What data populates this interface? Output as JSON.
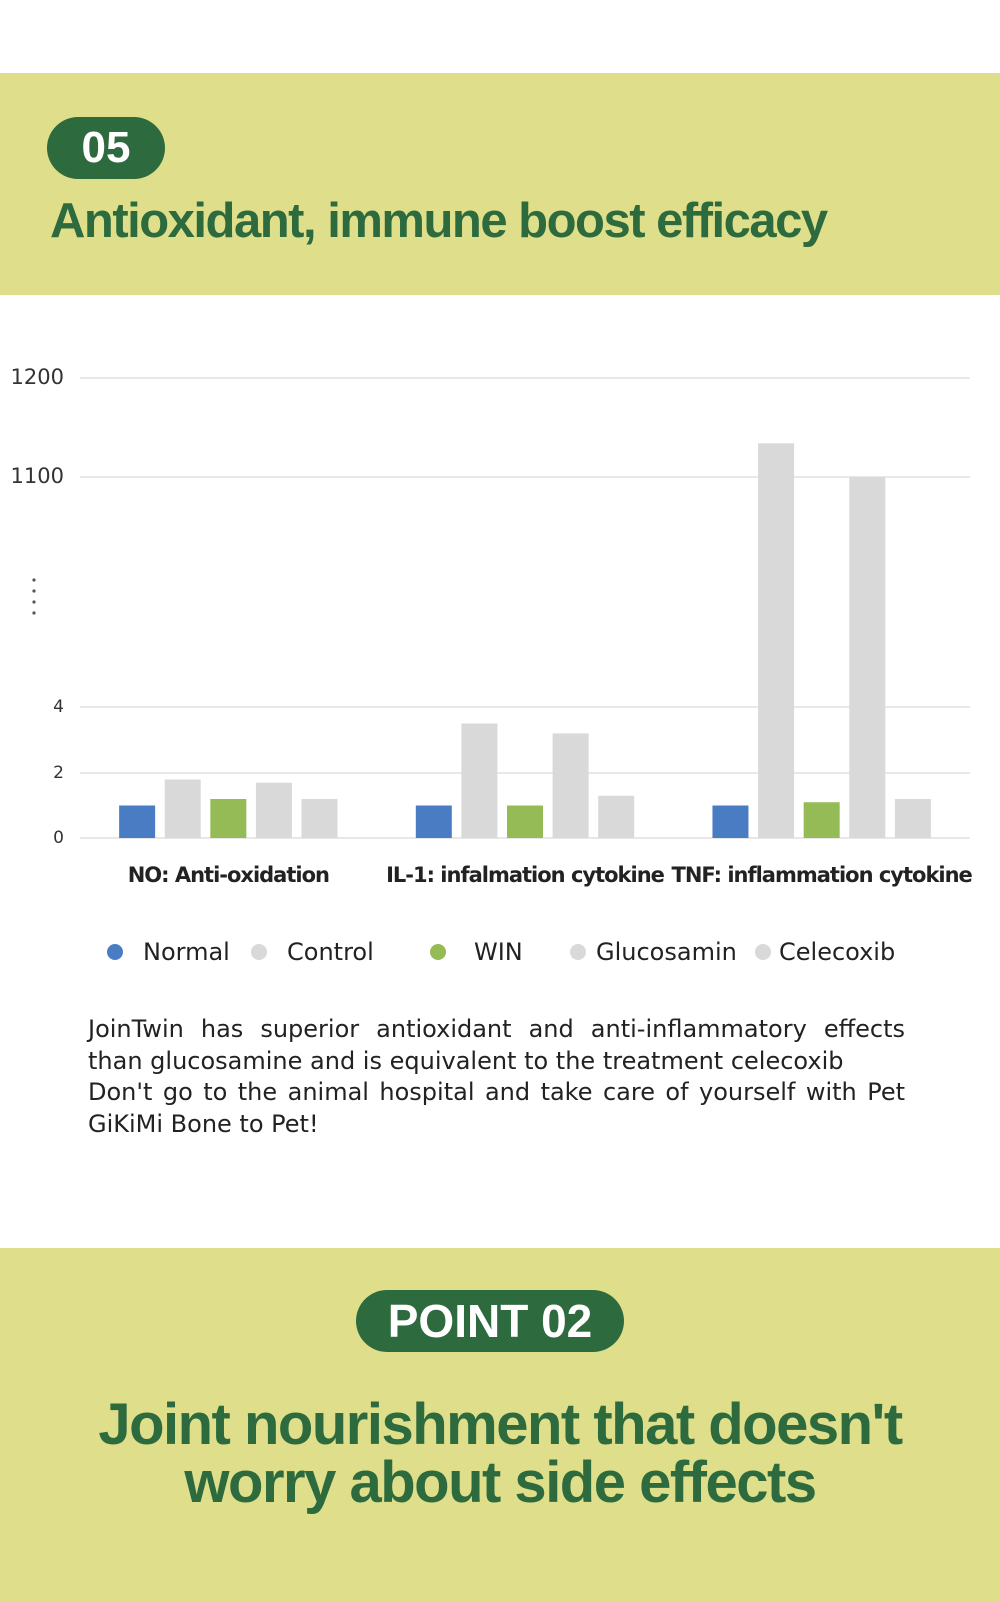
{
  "header": {
    "badge": "05",
    "title": "Antioxidant, immune boost efficacy"
  },
  "chart_data": {
    "type": "bar",
    "categories": [
      "NO: Anti-oxidation",
      "IL-1: infalmation cytokine",
      "TNF: inflammation cytokine"
    ],
    "series": [
      {
        "name": "Normal",
        "color": "#4a7cc4",
        "values": [
          1,
          1,
          1
        ]
      },
      {
        "name": "Control",
        "color": "#d9d9d9",
        "values": [
          1.8,
          3.5,
          1134
        ]
      },
      {
        "name": "WIN",
        "color": "#94bb55",
        "values": [
          1.2,
          1,
          1.1
        ]
      },
      {
        "name": "Glucosamin",
        "color": "#d9d9d9",
        "values": [
          1.7,
          3.2,
          1100
        ]
      },
      {
        "name": "Celecoxib",
        "color": "#d9d9d9",
        "values": [
          1.2,
          1.3,
          1.2
        ]
      }
    ],
    "ylim": [
      0,
      1200
    ],
    "yticks": [
      0,
      2,
      4,
      1100,
      1200
    ],
    "grid": true
  },
  "description": [
    "JoinTwin has superior antioxidant and anti-inflammatory effects than glucosamine and is equivalent to the treatment celecoxib",
    "Don't go to the animal hospital and take care of yourself with Pet GiKiMi Bone to Pet!"
  ],
  "point": {
    "badge": "POINT 02",
    "title_line1": "Joint nourishment that doesn't",
    "title_line2": "worry about side effects"
  }
}
